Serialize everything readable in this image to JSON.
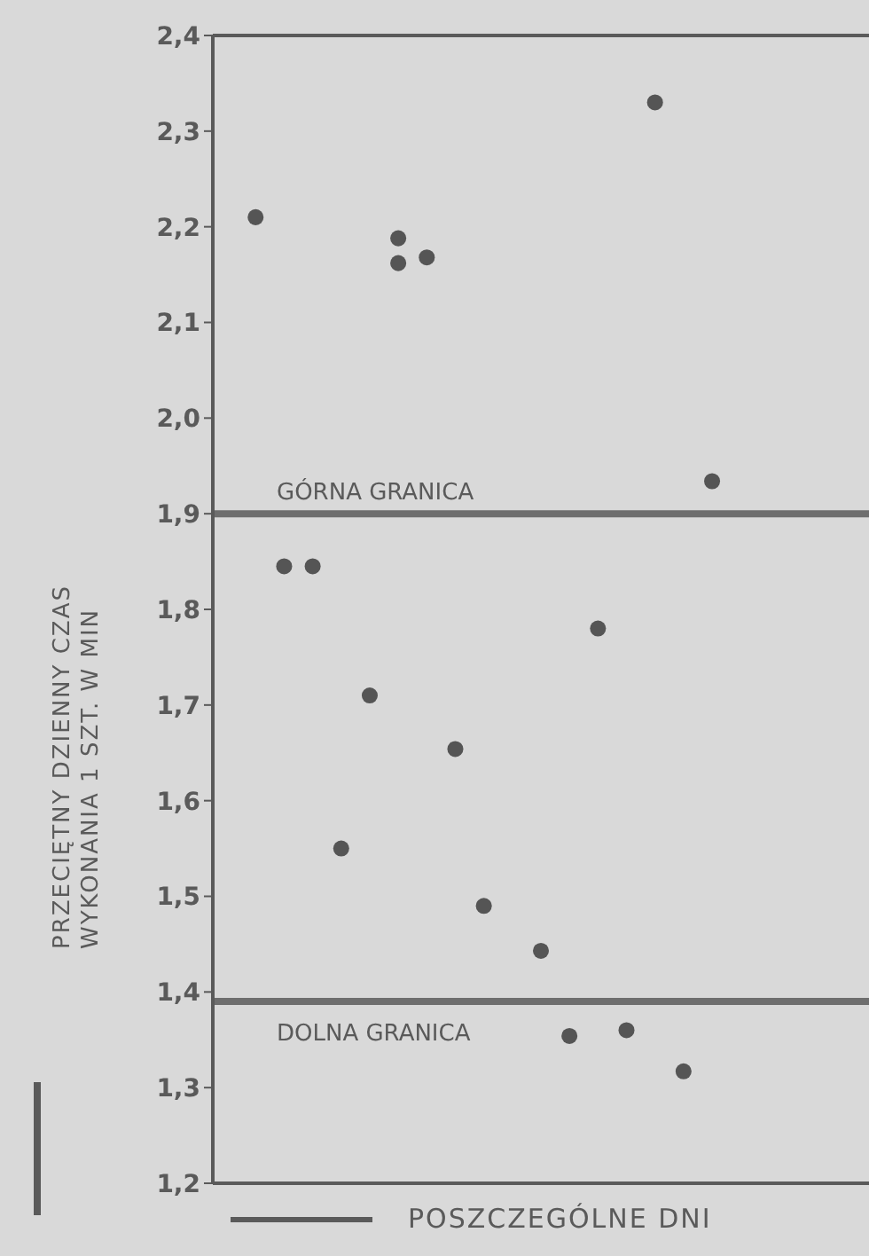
{
  "chart_data": {
    "type": "scatter",
    "xlabel": "POSZCZEGÓLNE DNI",
    "ylabel": "PRZECIĘTNY DZIENNY CZAS WYKONANIA 1 SZT. W MIN",
    "categories": [
      null,
      null,
      null,
      null,
      null,
      null,
      null,
      null,
      null,
      null,
      null,
      null,
      null,
      null,
      null,
      null,
      null,
      null,
      null,
      null,
      null,
      null,
      null
    ],
    "series": [
      {
        "color": "#555555",
        "values": [
          null,
          2.21,
          1.845,
          1.845,
          1.55,
          1.71,
          2.188,
          2.168,
          1.654,
          1.49,
          null,
          1.443,
          1.354,
          1.78,
          1.36,
          2.33,
          1.317,
          1.934,
          null,
          null,
          null,
          null,
          null
        ]
      },
      {
        "color": "#555555",
        "values": [
          null,
          null,
          null,
          null,
          null,
          null,
          2.162,
          null,
          null,
          null,
          null,
          null,
          null,
          null,
          null,
          null,
          null,
          null,
          null,
          null,
          null,
          null,
          null
        ]
      }
    ],
    "ylim": [
      1.2,
      2.4
    ],
    "yticks": [
      {
        "value": 1.2,
        "label": "1,2"
      },
      {
        "value": 1.3,
        "label": "1,3"
      },
      {
        "value": 1.4,
        "label": "1,4"
      },
      {
        "value": 1.5,
        "label": "1,5"
      },
      {
        "value": 1.6,
        "label": "1,6"
      },
      {
        "value": 1.7,
        "label": "1,7"
      },
      {
        "value": 1.8,
        "label": "1,8"
      },
      {
        "value": 1.9,
        "label": "1,9"
      },
      {
        "value": 2.0,
        "label": "2,0"
      },
      {
        "value": 2.1,
        "label": "2,1"
      },
      {
        "value": 2.2,
        "label": "2,2"
      },
      {
        "value": 2.3,
        "label": "2,3"
      },
      {
        "value": 2.4,
        "label": "2,4"
      }
    ],
    "ref_lines": [
      {
        "axis": "y",
        "value": 1.9,
        "label": "GÓRNA GRANICA",
        "color": "#6e6e6e"
      },
      {
        "axis": "y",
        "value": 1.39,
        "label": "DOLNA GRANICA",
        "color": "#6e6e6e"
      }
    ],
    "marker": "circle"
  }
}
